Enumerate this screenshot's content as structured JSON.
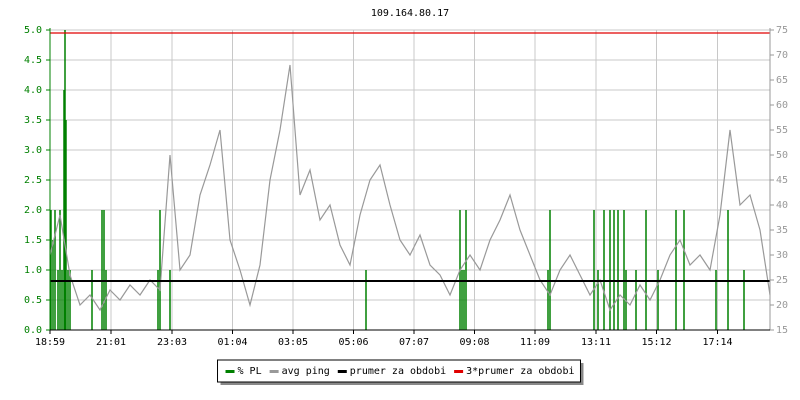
{
  "chart_data": {
    "type": "line",
    "title": "109.164.80.17",
    "xlim": [
      0,
      1440
    ],
    "xticks": [
      {
        "value": 0,
        "label": "18:59"
      },
      {
        "value": 122,
        "label": "21:01"
      },
      {
        "value": 244,
        "label": "23:03"
      },
      {
        "value": 365,
        "label": "01:04"
      },
      {
        "value": 486,
        "label": "03:05"
      },
      {
        "value": 607,
        "label": "05:06"
      },
      {
        "value": 728,
        "label": "07:07"
      },
      {
        "value": 849,
        "label": "09:08"
      },
      {
        "value": 970,
        "label": "11:09"
      },
      {
        "value": 1092,
        "label": "13:11"
      },
      {
        "value": 1213,
        "label": "15:12"
      },
      {
        "value": 1335,
        "label": "17:14"
      }
    ],
    "ylim": [
      0,
      5
    ],
    "yticks": [
      {
        "value": 0,
        "label": "0.0"
      },
      {
        "value": 0.5,
        "label": "0.5"
      },
      {
        "value": 1,
        "label": "1.0"
      },
      {
        "value": 1.5,
        "label": "1.5"
      },
      {
        "value": 2,
        "label": "2.0"
      },
      {
        "value": 2.5,
        "label": "2.5"
      },
      {
        "value": 3,
        "label": "3.0"
      },
      {
        "value": 3.5,
        "label": "3.5"
      },
      {
        "value": 4,
        "label": "4.0"
      },
      {
        "value": 4.5,
        "label": "4.5"
      },
      {
        "value": 5,
        "label": "5.0"
      }
    ],
    "y2lim": [
      15,
      75
    ],
    "y2ticks": [
      15,
      20,
      25,
      30,
      35,
      40,
      45,
      50,
      55,
      60,
      65,
      70,
      75
    ],
    "grid": true,
    "series": [
      {
        "name": "% PL",
        "color": "#008000",
        "type": "bar",
        "x": [
          2,
          6,
          10,
          16,
          20,
          24,
          28,
          30,
          32,
          36,
          40,
          84,
          104,
          108,
          112,
          216,
          220,
          240,
          632,
          820,
          824,
          828,
          832,
          996,
          1000,
          1088,
          1096,
          1108,
          1120,
          1128,
          1136,
          1148,
          1152,
          1172,
          1192,
          1216,
          1252,
          1268,
          1332,
          1356,
          1388
        ],
        "values": [
          2,
          1.5,
          2,
          1,
          2,
          1,
          4,
          5,
          3.5,
          1,
          1,
          1,
          2,
          2,
          1,
          1,
          2,
          1,
          1,
          2,
          1,
          1,
          2,
          1,
          2,
          2,
          1,
          2,
          2,
          2,
          2,
          2,
          1,
          1,
          2,
          1,
          2,
          2,
          1,
          2,
          1
        ]
      },
      {
        "name": "avg ping",
        "color": "#999999",
        "type": "line",
        "axis": "y2",
        "x": [
          0,
          20,
          40,
          60,
          80,
          100,
          120,
          140,
          160,
          180,
          200,
          220,
          240,
          260,
          280,
          300,
          320,
          340,
          360,
          380,
          400,
          420,
          440,
          460,
          480,
          500,
          520,
          540,
          560,
          580,
          600,
          620,
          640,
          660,
          680,
          700,
          720,
          740,
          760,
          780,
          800,
          820,
          840,
          860,
          880,
          900,
          920,
          940,
          960,
          980,
          1000,
          1020,
          1040,
          1060,
          1080,
          1100,
          1120,
          1140,
          1160,
          1180,
          1200,
          1220,
          1240,
          1260,
          1280,
          1300,
          1320,
          1340,
          1360,
          1380,
          1400,
          1420,
          1440
        ],
        "values": [
          30,
          38,
          26,
          20,
          22,
          19,
          23,
          21,
          24,
          22,
          25,
          23,
          50,
          27,
          30,
          42,
          48,
          55,
          33,
          27,
          20,
          28,
          45,
          55,
          68,
          42,
          47,
          37,
          40,
          32,
          28,
          38,
          45,
          48,
          40,
          33,
          30,
          34,
          28,
          26,
          22,
          27,
          30,
          27,
          33,
          37,
          42,
          35,
          30,
          25,
          22,
          27,
          30,
          26,
          22,
          25,
          19,
          22,
          20,
          24,
          21,
          25,
          30,
          33,
          28,
          30,
          27,
          38,
          55,
          40,
          42,
          35,
          22
        ]
      },
      {
        "name": "prumer za obdobi",
        "color": "#000000",
        "type": "hline",
        "axis": "y2",
        "values": [
          24.8
        ]
      },
      {
        "name": "3*prumer za obdobi",
        "color": "#e00000",
        "type": "hline",
        "axis": "y2",
        "values": [
          74.4
        ]
      }
    ]
  }
}
